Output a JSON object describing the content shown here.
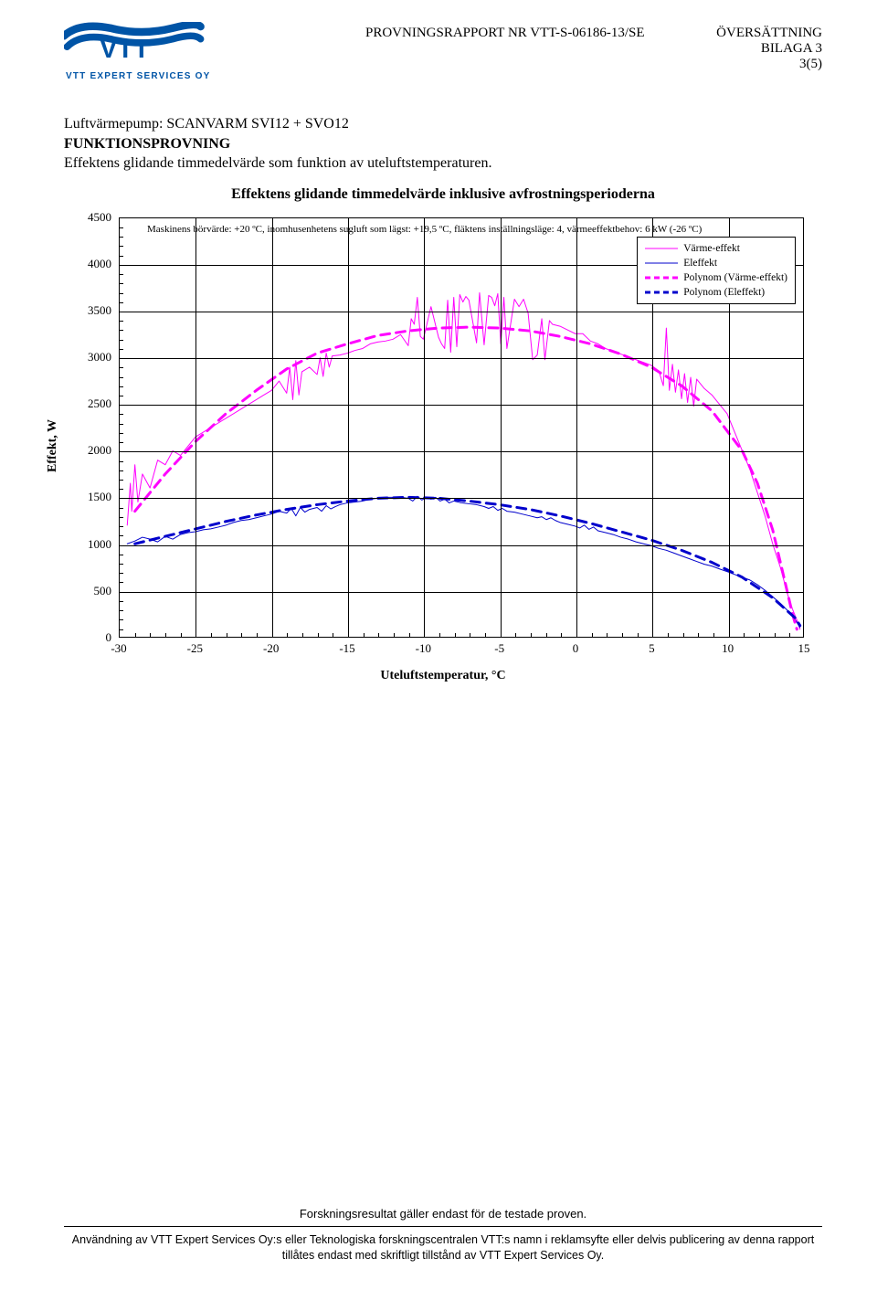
{
  "header": {
    "report_no": "PROVNINGSRAPPORT NR VTT-S-06186-13/SE",
    "right1": "ÖVERSÄTTNING",
    "right2": "BILAGA 3",
    "right3": "3(5)",
    "logo_text": "VTT",
    "logo_sub": "VTT EXPERT SERVICES OY",
    "logo_color": "#0054a6"
  },
  "body": {
    "line1": "Luftvärmepump: SCANVARM SVI12 + SVO12",
    "line2_bold": "FUNKTIONSPROVNING",
    "line3": "Effektens glidande timmedelvärde som funktion av uteluftstemperaturen."
  },
  "chart": {
    "title": "Effektens glidande timmedelvärde inklusive avfrostningsperioderna",
    "annotation": "Maskinens börvärde: +20 ºC, inomhusenhetens sugluft som lägst: +19,5 ºC, fläktens inställningsläge: 4, värmeeffektbehov: 6 kW (-26 ºC)",
    "annotation_fontsize": 11,
    "xlabel": "Uteluftstemperatur, °C",
    "ylabel": "Effekt, W",
    "label_fontsize": 14,
    "xlim": [
      -30,
      15
    ],
    "ylim": [
      0,
      4500
    ],
    "xtick_step": 5,
    "ytick_step": 500,
    "xticks": [
      -30,
      -25,
      -20,
      -15,
      -10,
      -5,
      0,
      5,
      10,
      15
    ],
    "yticks": [
      0,
      500,
      1000,
      1500,
      2000,
      2500,
      3000,
      3500,
      4000,
      4500
    ],
    "grid_color": "#000000",
    "background_color": "#ffffff",
    "line_width_data": 1,
    "line_width_poly": 3,
    "legend": {
      "position": "top-right",
      "items": [
        {
          "label": "Värme-effekt",
          "color": "#ff00ff",
          "style": "solid",
          "width": 1
        },
        {
          "label": "Eleffekt",
          "color": "#0000cc",
          "style": "solid",
          "width": 1
        },
        {
          "label": "Polynom (Värme-effekt)",
          "color": "#ff00ff",
          "style": "dashed",
          "width": 3
        },
        {
          "label": "Polynom (Eleffekt)",
          "color": "#0000cc",
          "style": "dashed",
          "width": 3
        }
      ]
    },
    "series": {
      "varme_effekt": {
        "color": "#ff00ff",
        "style": "solid",
        "points": [
          [
            -29.5,
            1200
          ],
          [
            -29.3,
            1650
          ],
          [
            -29.2,
            1350
          ],
          [
            -29.0,
            1850
          ],
          [
            -28.8,
            1450
          ],
          [
            -28.5,
            1750
          ],
          [
            -28.0,
            1600
          ],
          [
            -27.5,
            1900
          ],
          [
            -27.0,
            1850
          ],
          [
            -26.5,
            2000
          ],
          [
            -26.0,
            1950
          ],
          [
            -25.0,
            2150
          ],
          [
            -24.0,
            2250
          ],
          [
            -23.0,
            2350
          ],
          [
            -22.0,
            2450
          ],
          [
            -21.0,
            2550
          ],
          [
            -20.5,
            2600
          ],
          [
            -20.0,
            2650
          ],
          [
            -19.5,
            2750
          ],
          [
            -19.0,
            2620
          ],
          [
            -18.8,
            2900
          ],
          [
            -18.6,
            2550
          ],
          [
            -18.4,
            2970
          ],
          [
            -18.2,
            2600
          ],
          [
            -18.0,
            2850
          ],
          [
            -17.5,
            2900
          ],
          [
            -17.0,
            2820
          ],
          [
            -16.8,
            3000
          ],
          [
            -16.6,
            2800
          ],
          [
            -16.4,
            3050
          ],
          [
            -16.2,
            2900
          ],
          [
            -16.0,
            3020
          ],
          [
            -15.5,
            3030
          ],
          [
            -15.0,
            3050
          ],
          [
            -14.5,
            3080
          ],
          [
            -14.0,
            3100
          ],
          [
            -13.5,
            3150
          ],
          [
            -13.0,
            3170
          ],
          [
            -12.5,
            3180
          ],
          [
            -12.0,
            3200
          ],
          [
            -11.5,
            3250
          ],
          [
            -11.0,
            3130
          ],
          [
            -10.8,
            3420
          ],
          [
            -10.6,
            3360
          ],
          [
            -10.4,
            3650
          ],
          [
            -10.2,
            3230
          ],
          [
            -10.0,
            3200
          ],
          [
            -9.5,
            3550
          ],
          [
            -9.0,
            3220
          ],
          [
            -8.8,
            3150
          ],
          [
            -8.6,
            3100
          ],
          [
            -8.4,
            3620
          ],
          [
            -8.2,
            3060
          ],
          [
            -8.0,
            3650
          ],
          [
            -7.8,
            3120
          ],
          [
            -7.6,
            3680
          ],
          [
            -7.4,
            3600
          ],
          [
            -7.2,
            3660
          ],
          [
            -7.0,
            3620
          ],
          [
            -6.5,
            3160
          ],
          [
            -6.3,
            3700
          ],
          [
            -6.0,
            3140
          ],
          [
            -5.7,
            3670
          ],
          [
            -5.5,
            3650
          ],
          [
            -5.3,
            3560
          ],
          [
            -5.1,
            3690
          ],
          [
            -4.9,
            3150
          ],
          [
            -4.7,
            3650
          ],
          [
            -4.5,
            3100
          ],
          [
            -4.0,
            3630
          ],
          [
            -3.7,
            3550
          ],
          [
            -3.4,
            3630
          ],
          [
            -3.1,
            3480
          ],
          [
            -2.8,
            2980
          ],
          [
            -2.5,
            3030
          ],
          [
            -2.2,
            3420
          ],
          [
            -2.0,
            2980
          ],
          [
            -1.7,
            3400
          ],
          [
            -1.5,
            3360
          ],
          [
            -1.0,
            3340
          ],
          [
            -0.5,
            3300
          ],
          [
            0.0,
            3260
          ],
          [
            0.5,
            3260
          ],
          [
            1.0,
            3180
          ],
          [
            1.5,
            3150
          ],
          [
            2.0,
            3100
          ],
          [
            2.5,
            3070
          ],
          [
            3.0,
            3040
          ],
          [
            3.5,
            3010
          ],
          [
            4.0,
            2980
          ],
          [
            4.5,
            2950
          ],
          [
            5.0,
            2920
          ],
          [
            5.5,
            2860
          ],
          [
            5.8,
            2700
          ],
          [
            6.0,
            3320
          ],
          [
            6.2,
            2650
          ],
          [
            6.4,
            2930
          ],
          [
            6.6,
            2630
          ],
          [
            6.8,
            2870
          ],
          [
            7.0,
            2560
          ],
          [
            7.2,
            2830
          ],
          [
            7.4,
            2520
          ],
          [
            7.6,
            2790
          ],
          [
            7.8,
            2480
          ],
          [
            8.0,
            2770
          ],
          [
            8.5,
            2670
          ],
          [
            9.0,
            2600
          ],
          [
            9.5,
            2500
          ],
          [
            10.0,
            2400
          ],
          [
            10.5,
            2200
          ],
          [
            11.0,
            2000
          ],
          [
            11.5,
            1800
          ],
          [
            12.0,
            1550
          ],
          [
            12.5,
            1300
          ],
          [
            13.0,
            1000
          ],
          [
            13.5,
            750
          ],
          [
            14.0,
            450
          ],
          [
            14.3,
            300
          ],
          [
            14.6,
            180
          ],
          [
            14.8,
            80
          ]
        ]
      },
      "eleffekt": {
        "color": "#0000cc",
        "style": "solid",
        "points": [
          [
            -29.5,
            1000
          ],
          [
            -29.0,
            1030
          ],
          [
            -28.5,
            1070
          ],
          [
            -28.0,
            1050
          ],
          [
            -27.5,
            1020
          ],
          [
            -27.0,
            1080
          ],
          [
            -26.5,
            1050
          ],
          [
            -26.0,
            1100
          ],
          [
            -25.5,
            1120
          ],
          [
            -25.0,
            1130
          ],
          [
            -24.5,
            1150
          ],
          [
            -24.0,
            1160
          ],
          [
            -23.5,
            1180
          ],
          [
            -23.0,
            1200
          ],
          [
            -22.5,
            1230
          ],
          [
            -22.0,
            1250
          ],
          [
            -21.5,
            1260
          ],
          [
            -21.0,
            1280
          ],
          [
            -20.5,
            1300
          ],
          [
            -20.0,
            1320
          ],
          [
            -19.5,
            1350
          ],
          [
            -19.0,
            1330
          ],
          [
            -18.7,
            1380
          ],
          [
            -18.4,
            1300
          ],
          [
            -18.1,
            1390
          ],
          [
            -17.8,
            1340
          ],
          [
            -17.5,
            1370
          ],
          [
            -17.0,
            1390
          ],
          [
            -16.7,
            1350
          ],
          [
            -16.4,
            1410
          ],
          [
            -16.1,
            1375
          ],
          [
            -15.8,
            1400
          ],
          [
            -15.5,
            1420
          ],
          [
            -15.0,
            1440
          ],
          [
            -14.5,
            1450
          ],
          [
            -14.0,
            1460
          ],
          [
            -13.5,
            1480
          ],
          [
            -13.0,
            1490
          ],
          [
            -12.5,
            1500
          ],
          [
            -12.0,
            1500
          ],
          [
            -11.5,
            1500
          ],
          [
            -11.0,
            1490
          ],
          [
            -10.7,
            1460
          ],
          [
            -10.4,
            1510
          ],
          [
            -10.1,
            1470
          ],
          [
            -9.8,
            1500
          ],
          [
            -9.5,
            1480
          ],
          [
            -9.2,
            1500
          ],
          [
            -8.9,
            1460
          ],
          [
            -8.6,
            1480
          ],
          [
            -8.3,
            1440
          ],
          [
            -8.0,
            1460
          ],
          [
            -7.5,
            1440
          ],
          [
            -7.0,
            1430
          ],
          [
            -6.5,
            1420
          ],
          [
            -6.0,
            1400
          ],
          [
            -5.7,
            1380
          ],
          [
            -5.4,
            1400
          ],
          [
            -5.1,
            1360
          ],
          [
            -4.8,
            1380
          ],
          [
            -4.5,
            1350
          ],
          [
            -4.0,
            1340
          ],
          [
            -3.5,
            1320
          ],
          [
            -3.0,
            1300
          ],
          [
            -2.5,
            1280
          ],
          [
            -2.2,
            1290
          ],
          [
            -1.9,
            1260
          ],
          [
            -1.6,
            1280
          ],
          [
            -1.3,
            1250
          ],
          [
            -1.0,
            1230
          ],
          [
            -0.5,
            1210
          ],
          [
            0.0,
            1190
          ],
          [
            0.3,
            1170
          ],
          [
            0.6,
            1200
          ],
          [
            0.9,
            1155
          ],
          [
            1.2,
            1180
          ],
          [
            1.5,
            1140
          ],
          [
            2.0,
            1120
          ],
          [
            2.5,
            1100
          ],
          [
            3.0,
            1070
          ],
          [
            3.5,
            1050
          ],
          [
            4.0,
            1020
          ],
          [
            4.5,
            1000
          ],
          [
            5.0,
            980
          ],
          [
            5.5,
            950
          ],
          [
            6.0,
            930
          ],
          [
            6.5,
            900
          ],
          [
            7.0,
            870
          ],
          [
            7.5,
            840
          ],
          [
            8.0,
            810
          ],
          [
            8.5,
            780
          ],
          [
            9.0,
            760
          ],
          [
            9.5,
            730
          ],
          [
            10.0,
            700
          ],
          [
            10.5,
            670
          ],
          [
            11.0,
            640
          ],
          [
            11.5,
            610
          ],
          [
            12.0,
            560
          ],
          [
            12.5,
            500
          ],
          [
            13.0,
            430
          ],
          [
            13.5,
            360
          ],
          [
            14.0,
            280
          ],
          [
            14.5,
            180
          ],
          [
            14.8,
            100
          ]
        ]
      },
      "poly_varme": {
        "color": "#ff00ff",
        "style": "dashed",
        "points": [
          [
            -29,
            1350
          ],
          [
            -27,
            1750
          ],
          [
            -25,
            2100
          ],
          [
            -23,
            2400
          ],
          [
            -21,
            2650
          ],
          [
            -19,
            2880
          ],
          [
            -17,
            3050
          ],
          [
            -15,
            3150
          ],
          [
            -13,
            3240
          ],
          [
            -11,
            3290
          ],
          [
            -9,
            3320
          ],
          [
            -7,
            3330
          ],
          [
            -5,
            3320
          ],
          [
            -3,
            3290
          ],
          [
            -1,
            3230
          ],
          [
            1,
            3150
          ],
          [
            3,
            3040
          ],
          [
            5,
            2900
          ],
          [
            7,
            2700
          ],
          [
            9,
            2430
          ],
          [
            11,
            2000
          ],
          [
            12,
            1650
          ],
          [
            13,
            1150
          ],
          [
            13.8,
            600
          ],
          [
            14.3,
            250
          ],
          [
            14.6,
            80
          ]
        ]
      },
      "poly_el": {
        "color": "#0000cc",
        "style": "dashed",
        "points": [
          [
            -29,
            1000
          ],
          [
            -27,
            1080
          ],
          [
            -25,
            1160
          ],
          [
            -23,
            1240
          ],
          [
            -21,
            1310
          ],
          [
            -19,
            1370
          ],
          [
            -17,
            1420
          ],
          [
            -15,
            1460
          ],
          [
            -13,
            1490
          ],
          [
            -11,
            1500
          ],
          [
            -9,
            1490
          ],
          [
            -7,
            1460
          ],
          [
            -5,
            1420
          ],
          [
            -3,
            1370
          ],
          [
            -1,
            1300
          ],
          [
            1,
            1220
          ],
          [
            3,
            1130
          ],
          [
            5,
            1040
          ],
          [
            7,
            930
          ],
          [
            9,
            800
          ],
          [
            11,
            640
          ],
          [
            13,
            420
          ],
          [
            14.5,
            200
          ],
          [
            14.8,
            120
          ]
        ]
      }
    }
  },
  "footer": {
    "line1": "Forskningsresultat gäller endast för de testade proven.",
    "line2": "Användning av VTT Expert Services Oy:s eller Teknologiska forskningscentralen VTT:s namn  i reklamsyfte eller delvis publicering av denna rapport tillåtes endast med skriftligt tillstånd av VTT Expert Services Oy."
  }
}
